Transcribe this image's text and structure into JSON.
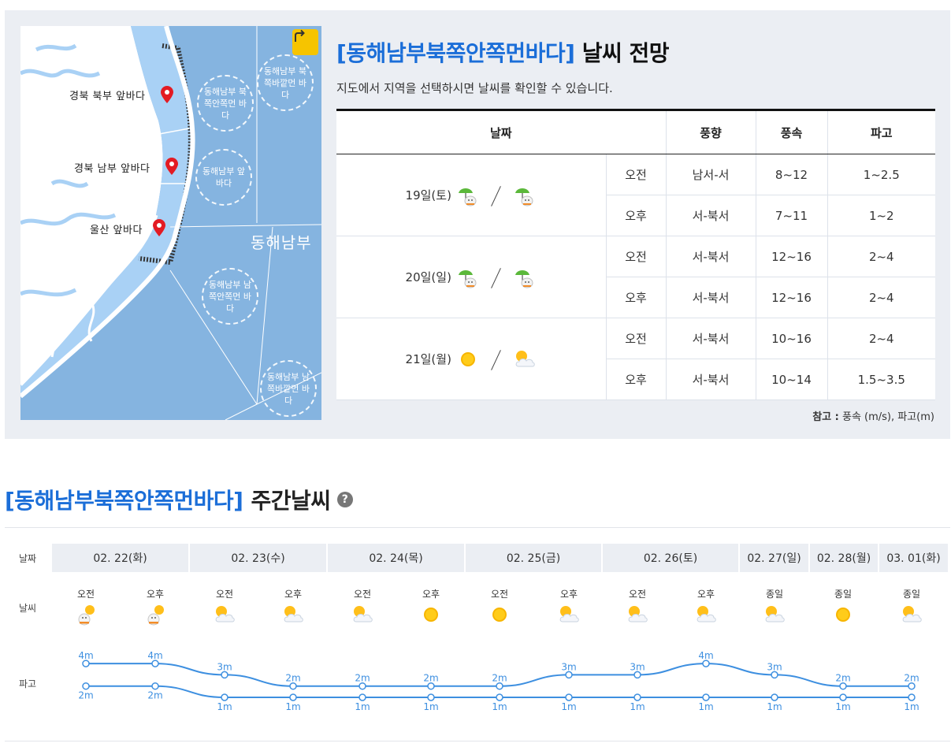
{
  "map": {
    "labels": {
      "north": "경북 북부 앞바다",
      "south": "경북 남부 앞바다",
      "ulsan": "울산 앞바다"
    },
    "zones": {
      "z1": "동해남부 북쪽안쪽먼 바다",
      "z2": "동해남부 북쪽바깥먼 바다",
      "z3": "동해남부 앞바다",
      "z4": "동해남부 남쪽안쪽먼 바다",
      "z5": "동해남부 남쪽바깥먼 바다"
    },
    "sea_label": "동해남부",
    "reset_icon": "redo-arrow-icon",
    "pin_color": "#e31b23",
    "sea_color": "#85b4e0",
    "coast_color": "#a9d1f5"
  },
  "forecast": {
    "title_area": "[동해남부북쪽안쪽먼바다]",
    "title_rest": "날씨 전망",
    "description": "지도에서 지역을 선택하시면 날씨를 확인할 수 있습니다.",
    "headers": {
      "date": "날짜",
      "dir": "풍향",
      "speed": "풍속",
      "wave": "파고"
    },
    "days": [
      {
        "date": "19일(토)",
        "icons": [
          "rain-umbrella-icon",
          "rain-umbrella-icon"
        ],
        "rows": [
          {
            "period": "오전",
            "dir": "남서-서",
            "speed": "8~12",
            "wave": "1~2.5"
          },
          {
            "period": "오후",
            "dir": "서-북서",
            "speed": "7~11",
            "wave": "1~2"
          }
        ]
      },
      {
        "date": "20일(일)",
        "icons": [
          "rain-umbrella-icon",
          "rain-umbrella-icon"
        ],
        "rows": [
          {
            "period": "오전",
            "dir": "서-북서",
            "speed": "12~16",
            "wave": "2~4"
          },
          {
            "period": "오후",
            "dir": "서-북서",
            "speed": "12~16",
            "wave": "2~4"
          }
        ]
      },
      {
        "date": "21일(월)",
        "icons": [
          "sun-icon",
          "partly-cloudy-icon"
        ],
        "rows": [
          {
            "period": "오전",
            "dir": "서-북서",
            "speed": "10~16",
            "wave": "2~4"
          },
          {
            "period": "오후",
            "dir": "서-북서",
            "speed": "10~14",
            "wave": "1.5~3.5"
          }
        ]
      }
    ],
    "note_label": "참고 :",
    "note_text": "풍속 (m/s), 파고(m)"
  },
  "weekly": {
    "title_area": "[동해남부북쪽안쪽먼바다]",
    "title_rest": "주간날씨",
    "help_icon": "question-icon",
    "row_labels": {
      "date": "날짜",
      "weather": "날씨",
      "wave": "파고"
    },
    "dates": [
      "02. 22(화)",
      "02. 23(수)",
      "02. 24(목)",
      "02. 25(금)",
      "02. 26(토)",
      "02. 27(일)",
      "02. 28(월)",
      "03. 01(화)"
    ],
    "slots": [
      {
        "label": "오전",
        "icon": "snow-sun-icon",
        "max": "4m",
        "min": "2m",
        "max_v": 4,
        "min_v": 2
      },
      {
        "label": "오후",
        "icon": "snow-sun-icon",
        "max": "4m",
        "min": "2m",
        "max_v": 4,
        "min_v": 2
      },
      {
        "label": "오전",
        "icon": "partly-cloudy-icon",
        "max": "3m",
        "min": "1m",
        "max_v": 3,
        "min_v": 1
      },
      {
        "label": "오후",
        "icon": "partly-cloudy-icon",
        "max": "2m",
        "min": "1m",
        "max_v": 2,
        "min_v": 1
      },
      {
        "label": "오전",
        "icon": "partly-cloudy-icon",
        "max": "2m",
        "min": "1m",
        "max_v": 2,
        "min_v": 1
      },
      {
        "label": "오후",
        "icon": "sun-icon",
        "max": "2m",
        "min": "1m",
        "max_v": 2,
        "min_v": 1
      },
      {
        "label": "오전",
        "icon": "sun-icon",
        "max": "2m",
        "min": "1m",
        "max_v": 2,
        "min_v": 1
      },
      {
        "label": "오후",
        "icon": "partly-cloudy-icon",
        "max": "3m",
        "min": "1m",
        "max_v": 3,
        "min_v": 1
      },
      {
        "label": "오전",
        "icon": "partly-cloudy-icon",
        "max": "3m",
        "min": "1m",
        "max_v": 3,
        "min_v": 1
      },
      {
        "label": "오후",
        "icon": "partly-cloudy-icon",
        "max": "4m",
        "min": "1m",
        "max_v": 4,
        "min_v": 1
      },
      {
        "label": "종일",
        "icon": "partly-cloudy-icon",
        "max": "3m",
        "min": "1m",
        "max_v": 3,
        "min_v": 1
      },
      {
        "label": "종일",
        "icon": "sun-icon",
        "max": "2m",
        "min": "1m",
        "max_v": 2,
        "min_v": 1
      },
      {
        "label": "종일",
        "icon": "partly-cloudy-icon",
        "max": "2m",
        "min": "1m",
        "max_v": 2,
        "min_v": 1
      }
    ],
    "line_color": "#3d8fe0",
    "accent": "#1b6ed8"
  }
}
